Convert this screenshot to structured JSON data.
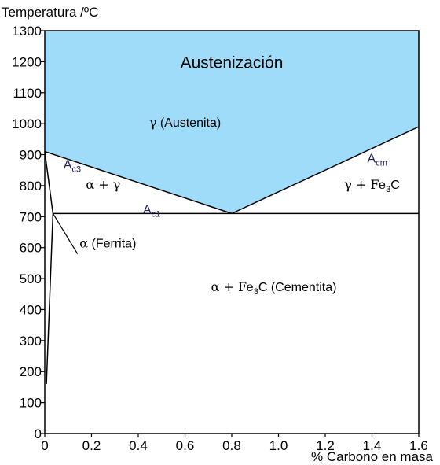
{
  "chart_data": {
    "type": "phase-diagram",
    "title": "",
    "xlabel": "% Carbono en masa",
    "ylabel": "Temperatura /ºC",
    "xlim": [
      0,
      1.6
    ],
    "ylim": [
      0,
      1300
    ],
    "xticks": [
      0,
      0.2,
      0.4,
      0.6,
      0.8,
      1.0,
      1.2,
      1.4,
      1.6
    ],
    "xtick_labels": [
      "0",
      "0.2",
      "0.4",
      "0.6",
      "0.8",
      "1.0",
      "1.2",
      "1.4",
      "1.6"
    ],
    "yticks": [
      0,
      100,
      200,
      300,
      400,
      500,
      600,
      700,
      800,
      900,
      1000,
      1100,
      1200,
      1300
    ],
    "ytick_labels": [
      "0",
      "100",
      "200",
      "300",
      "400",
      "500",
      "600",
      "700",
      "800",
      "900",
      "1000",
      "1100",
      "1200",
      "1300"
    ],
    "grid": false,
    "austenite_fill_color": "#9fdcf9",
    "line_color": "#000000",
    "lines": {
      "a3": {
        "points": [
          [
            0,
            910
          ],
          [
            0.8,
            710
          ]
        ]
      },
      "acm": {
        "points": [
          [
            0.8,
            710
          ],
          [
            1.6,
            990
          ]
        ]
      },
      "a1": {
        "points": [
          [
            0.035,
            710
          ],
          [
            1.6,
            710
          ]
        ]
      },
      "alpha_solvus": {
        "points": [
          [
            0,
            910
          ],
          [
            0.035,
            710
          ]
        ]
      },
      "alpha_solubility": {
        "points": [
          [
            0.035,
            710
          ],
          [
            0.007,
            160
          ]
        ]
      }
    },
    "region_labels": [
      {
        "id": "austenizacion",
        "text": "Austenización",
        "x": 0.8,
        "y": 1180
      },
      {
        "id": "austenita",
        "text": "(Austenita)",
        "symbol": "γ",
        "x": 0.6,
        "y": 990
      },
      {
        "id": "alpha-gamma",
        "text": "",
        "symbol": "α + γ",
        "x": 0.25,
        "y": 790
      },
      {
        "id": "gamma-fe3c",
        "text": "",
        "symbol": "γ + Fe",
        "suffix": "C",
        "sub": "3",
        "x": 1.4,
        "y": 790
      },
      {
        "id": "alpha-fe3c",
        "text": "(Cementita)",
        "symbol": "α + Fe",
        "suffix": "C",
        "sub": "3",
        "x": 0.98,
        "y": 460
      },
      {
        "id": "ferrita",
        "text": "(Ferrita)",
        "symbol": "α",
        "x": 0.27,
        "y": 600
      }
    ],
    "line_labels": [
      {
        "id": "ac3",
        "main": "A",
        "sub": "c3",
        "x": 0.08,
        "y": 855
      },
      {
        "id": "ac1",
        "main": "A",
        "sub": "c1",
        "x": 0.42,
        "y": 710
      },
      {
        "id": "acm",
        "main": "A",
        "sub": "cm",
        "x": 1.38,
        "y": 875
      }
    ],
    "line_label_color": "#202060",
    "pointer": {
      "from": [
        0.035,
        710
      ],
      "to": [
        0.14,
        580
      ]
    }
  }
}
